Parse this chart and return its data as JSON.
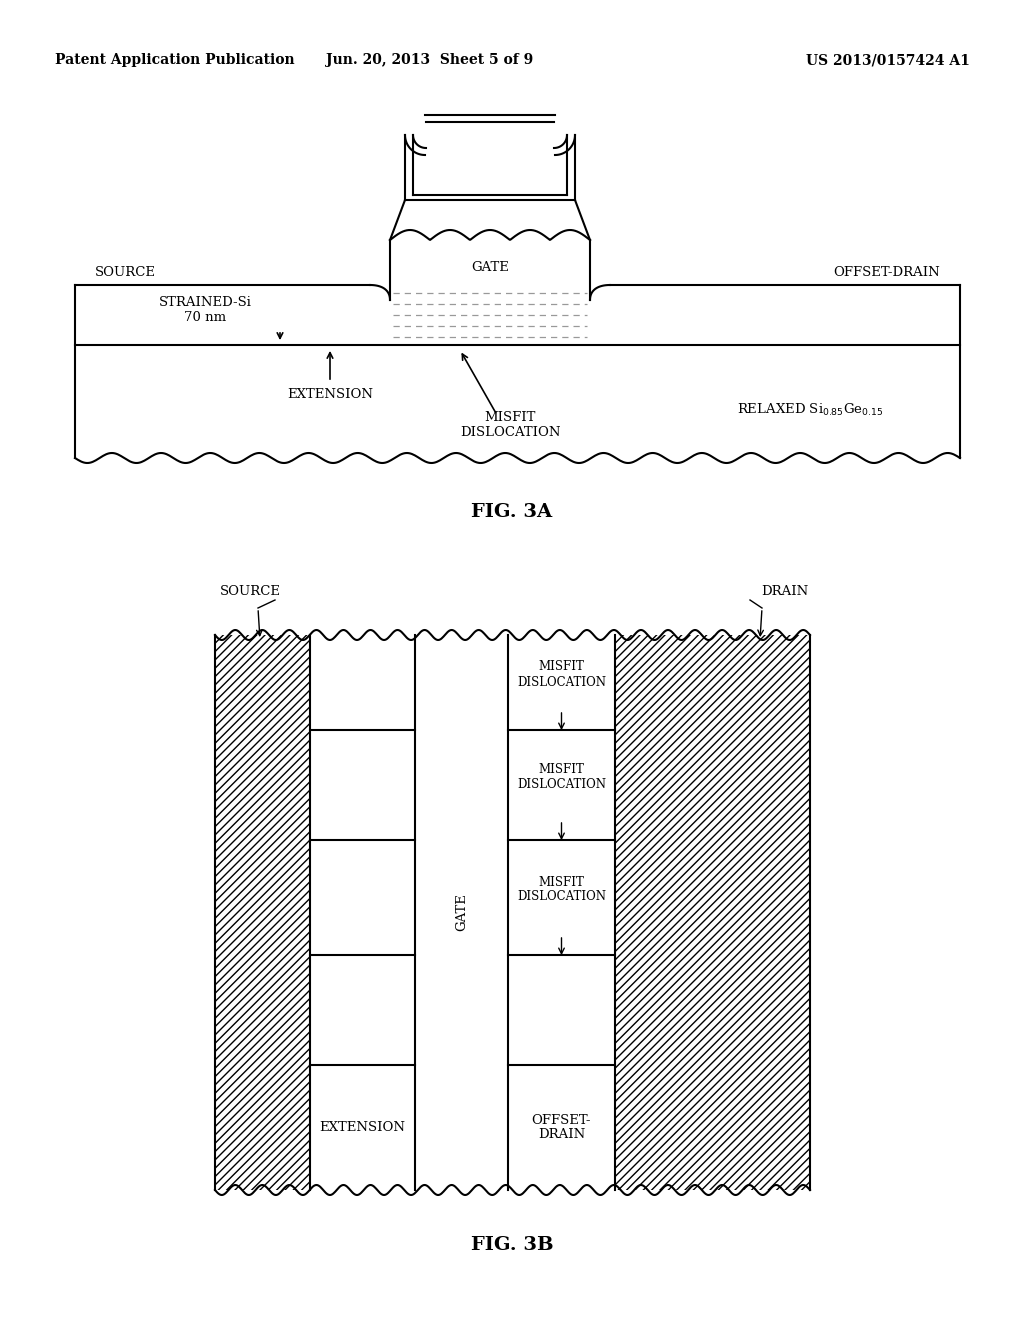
{
  "bg_color": "#ffffff",
  "header_left": "Patent Application Publication",
  "header_center": "Jun. 20, 2013  Sheet 5 of 9",
  "header_right": "US 2013/0157424 A1",
  "fig3a_label": "FIG. 3A",
  "fig3b_label": "FIG. 3B"
}
